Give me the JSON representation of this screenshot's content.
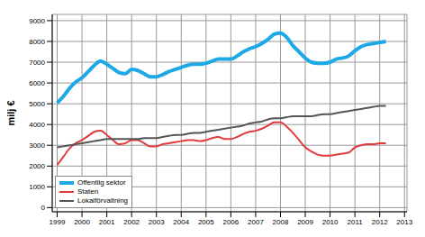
{
  "chart_data": {
    "type": "line",
    "y_label": "milj €",
    "x": [
      1999,
      1999.25,
      1999.5,
      1999.75,
      2000,
      2000.25,
      2000.5,
      2000.75,
      2001,
      2001.25,
      2001.5,
      2001.75,
      2002,
      2002.25,
      2002.5,
      2002.75,
      2003,
      2003.25,
      2003.5,
      2003.75,
      2004,
      2004.25,
      2004.5,
      2004.75,
      2005,
      2005.25,
      2005.5,
      2005.75,
      2006,
      2006.25,
      2006.5,
      2006.75,
      2007,
      2007.25,
      2007.5,
      2007.75,
      2008,
      2008.25,
      2008.5,
      2008.75,
      2009,
      2009.25,
      2009.5,
      2009.75,
      2010,
      2010.25,
      2010.5,
      2010.75,
      2011,
      2011.25,
      2011.5,
      2011.75,
      2012,
      2012.25
    ],
    "series": [
      {
        "name": "Offentlig sektor",
        "color": "#1da8e6",
        "values": [
          5050,
          5350,
          5750,
          6050,
          6250,
          6550,
          6850,
          7050,
          6900,
          6700,
          6500,
          6450,
          6650,
          6600,
          6450,
          6300,
          6300,
          6400,
          6550,
          6650,
          6750,
          6850,
          6900,
          6900,
          6950,
          7050,
          7150,
          7150,
          7150,
          7300,
          7500,
          7650,
          7750,
          7900,
          8100,
          8350,
          8400,
          8200,
          7800,
          7500,
          7200,
          7000,
          6950,
          6950,
          7000,
          7150,
          7200,
          7300,
          7550,
          7750,
          7850,
          7900,
          7950,
          8000
        ]
      },
      {
        "name": "Staten",
        "color": "#e03c3c",
        "values": [
          2050,
          2450,
          2850,
          3100,
          3250,
          3450,
          3650,
          3700,
          3500,
          3250,
          3050,
          3100,
          3250,
          3250,
          3100,
          2950,
          2950,
          3050,
          3100,
          3150,
          3200,
          3250,
          3250,
          3200,
          3250,
          3350,
          3400,
          3300,
          3300,
          3400,
          3550,
          3650,
          3700,
          3800,
          3950,
          4100,
          4100,
          3900,
          3600,
          3250,
          2900,
          2700,
          2550,
          2500,
          2500,
          2550,
          2600,
          2650,
          2900,
          3000,
          3050,
          3050,
          3100,
          3100
        ]
      },
      {
        "name": "Lokalförvaltning",
        "color": "#555555",
        "values": [
          2900,
          2950,
          3000,
          3050,
          3100,
          3150,
          3200,
          3250,
          3300,
          3300,
          3300,
          3300,
          3300,
          3300,
          3350,
          3350,
          3350,
          3400,
          3450,
          3500,
          3500,
          3550,
          3600,
          3600,
          3650,
          3700,
          3750,
          3800,
          3850,
          3900,
          3950,
          4050,
          4100,
          4150,
          4250,
          4300,
          4300,
          4350,
          4400,
          4400,
          4400,
          4400,
          4450,
          4500,
          4500,
          4550,
          4600,
          4650,
          4700,
          4750,
          4800,
          4850,
          4900,
          4900
        ]
      }
    ],
    "xlim": [
      1998.8,
      2013.1
    ],
    "xticks": [
      1999,
      2000,
      2001,
      2002,
      2003,
      2004,
      2005,
      2006,
      2007,
      2008,
      2009,
      2010,
      2011,
      2012,
      2013
    ],
    "ylim": [
      -200,
      9300
    ],
    "yticks": [
      0,
      1000,
      2000,
      3000,
      4000,
      5000,
      6000,
      7000,
      8000,
      9000
    ],
    "grid": true,
    "legend": "lower left"
  }
}
